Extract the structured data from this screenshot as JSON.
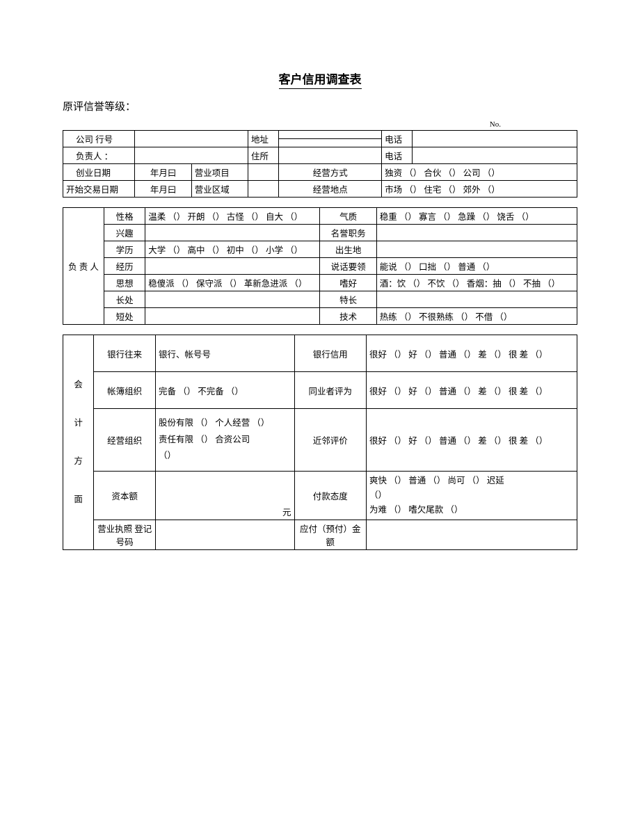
{
  "title": "客户信用调查表",
  "subtitle": "原评信誉等级：",
  "noLabel": "No.",
  "t1": {
    "company": "公司 行号",
    "address": "地址",
    "phone": "电话",
    "manager": "负责人       ：",
    "residence": "住所",
    "foundDate": "创业日期",
    "ymd": "年月曰",
    "bizItem": "营业项目",
    "bizMode": "经营方式",
    "bizModeOpts": "独资 （） 合伙 （） 公司 （）",
    "tradeStart": "开始交易日期",
    "bizArea": "营业区域",
    "bizPlace": "经营地点",
    "bizPlaceOpts": "市场 （） 住宅 （） 郊外 （）"
  },
  "t2": {
    "side": "负 责 人",
    "r": [
      {
        "a": "性格",
        "av": "温柔 （） 开朗 （） 古怪 （） 自大 （）",
        "b": "气质",
        "bv": "稳重 （） 寡言 （） 急躁 （） 饶舌 （）"
      },
      {
        "a": "兴趣",
        "av": "",
        "b": "名誉职务",
        "bv": ""
      },
      {
        "a": "学历",
        "av": "大学 （） 高中 （） 初中 （） 小学 （）",
        "b": "出生地",
        "bv": ""
      },
      {
        "a": "经历",
        "av": "",
        "b": "说话要领",
        "bv": "能说 （） 口拙 （） 普通 （）"
      },
      {
        "a": "思想",
        "av": "稳傻派 （） 保守派 （） 革新急进派 （）",
        "b": "嗜好",
        "bv": "酒：饮 （） 不饮 （）  香烟：抽 （） 不抽 （）"
      },
      {
        "a": "长处",
        "av": "",
        "b": "特长",
        "bv": ""
      },
      {
        "a": "短处",
        "av": "",
        "b": "技术",
        "bv": "热练 （） 不很熟练 （） 不借 （）"
      }
    ]
  },
  "t3": {
    "side": "会\n\n计\n\n方\n\n面",
    "r1a": "银行往来",
    "r1av": "银行、帐号号",
    "r1b": "银行信用",
    "r1bv": "很好 （） 好 （） 普通 （） 差 （） 很 差 （）",
    "r2a": "帐簿组织",
    "r2av": "完备 （） 不完备 （）",
    "r2b": "同业者评为",
    "r2bv": "很好 （） 好 （） 普通 （） 差 （） 很 差 （）",
    "r3a": "经营组织",
    "r3av": "股份有限 （） 个人经营 （）\n责任有限 （） 合资公司\n（）",
    "r3b": "近邻评价",
    "r3bv": "很好 （） 好 （） 普通 （） 差 （） 很 差 （）",
    "r4a": "资本额",
    "r4av": "元",
    "r4b": "付款态度",
    "r4bv": "爽快 （） 普通 （） 尚可 （） 迟延\n（）\n为难 （） 嗜欠尾款 （）",
    "r5a": "营业执照 登记号码",
    "r5av": "",
    "r5b": "应付（预付）金额",
    "r5bv": ""
  }
}
